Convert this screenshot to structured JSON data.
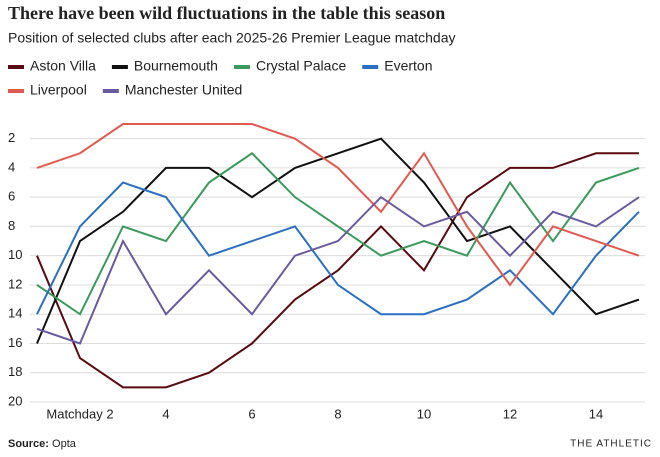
{
  "chart_data": {
    "type": "line",
    "title": "There have been wild fluctuations in the table this season",
    "subtitle": "Position of selected clubs after each 2025-26 Premier League matchday",
    "x": [
      1,
      2,
      3,
      4,
      5,
      6,
      7,
      8,
      9,
      10,
      11,
      12,
      13,
      14,
      15
    ],
    "xlim": [
      1,
      15
    ],
    "xticks": [
      {
        "value": 2,
        "label": "Matchday 2"
      },
      4,
      6,
      8,
      10,
      12,
      14
    ],
    "ylim": [
      20,
      1
    ],
    "yticks": [
      2,
      4,
      6,
      8,
      10,
      12,
      14,
      16,
      18,
      20
    ],
    "grid": true,
    "series": [
      {
        "name": "Aston Villa",
        "color": "#5a0b0f",
        "values": [
          10,
          17,
          19,
          19,
          18,
          16,
          13,
          11,
          8,
          11,
          6,
          4,
          4,
          3,
          3
        ]
      },
      {
        "name": "Bournemouth",
        "color": "#111111",
        "values": [
          16,
          9,
          7,
          4,
          4,
          6,
          4,
          3,
          2,
          5,
          9,
          8,
          11,
          14,
          13
        ]
      },
      {
        "name": "Crystal Palace",
        "color": "#3a9a5b",
        "values": [
          12,
          14,
          8,
          9,
          5,
          3,
          6,
          8,
          10,
          9,
          10,
          5,
          9,
          5,
          4
        ]
      },
      {
        "name": "Everton",
        "color": "#2a6fc1",
        "values": [
          14,
          8,
          5,
          6,
          10,
          9,
          8,
          12,
          14,
          14,
          13,
          11,
          14,
          10,
          7
        ]
      },
      {
        "name": "Liverpool",
        "color": "#e05a4f",
        "values": [
          4,
          3,
          1,
          1,
          1,
          1,
          2,
          4,
          7,
          3,
          8,
          12,
          8,
          9,
          10
        ]
      },
      {
        "name": "Manchester United",
        "color": "#6a5aa0",
        "values": [
          15,
          16,
          9,
          14,
          11,
          14,
          10,
          9,
          6,
          8,
          7,
          10,
          7,
          8,
          6
        ]
      }
    ],
    "source_label": "Source:",
    "source": "Opta",
    "brand": "THE ATHLETIC"
  }
}
